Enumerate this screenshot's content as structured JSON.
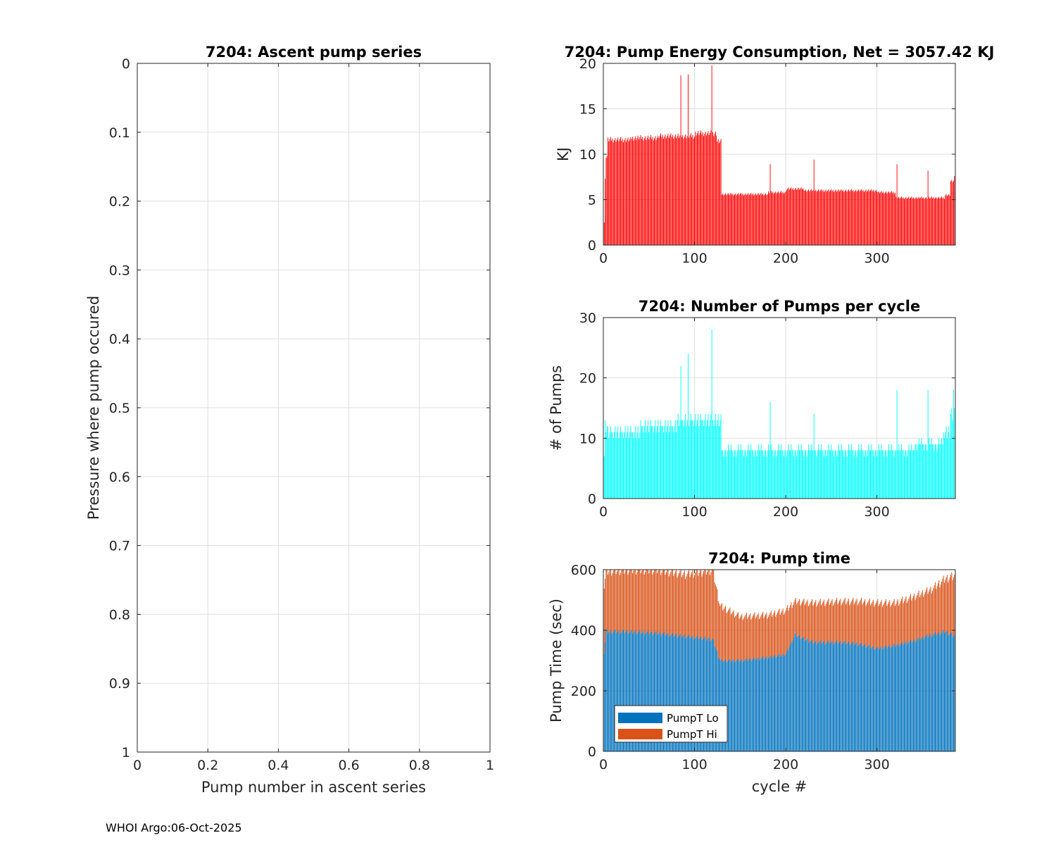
{
  "footer": "WHOI Argo:06-Oct-2025",
  "chart_data": [
    {
      "id": "ascent",
      "type": "scatter",
      "title": "7204: Ascent pump series",
      "xlabel": "Pump number in ascent series",
      "ylabel": "Pressure where pump occured",
      "xlim": [
        0,
        1
      ],
      "ylim": [
        0,
        1
      ],
      "y_reversed": true,
      "xticks": [
        "0",
        "0.2",
        "0.4",
        "0.6",
        "0.8",
        "1"
      ],
      "yticks": [
        "0",
        "0.1",
        "0.2",
        "0.3",
        "0.4",
        "0.5",
        "0.6",
        "0.7",
        "0.8",
        "0.9",
        "1"
      ],
      "grid": true,
      "points": []
    },
    {
      "id": "energy",
      "type": "bar",
      "title": "7204: Pump Energy Consumption,  Net = 3057.42 KJ",
      "xlabel": "",
      "ylabel": "KJ",
      "xlim": [
        0,
        386
      ],
      "ylim": [
        0,
        20
      ],
      "xticks": [
        "0",
        "100",
        "200",
        "300"
      ],
      "yticks": [
        "0",
        "5",
        "10",
        "15",
        "20"
      ],
      "grid": true,
      "color": "#ff0000",
      "segments": [
        {
          "x0": 1,
          "x1": 1,
          "v": 2.5
        },
        {
          "x0": 2,
          "x1": 2,
          "v": 7.2
        },
        {
          "x0": 3,
          "x1": 4,
          "v": 9.8
        },
        {
          "x0": 5,
          "x1": 30,
          "v": 11.6
        },
        {
          "x0": 31,
          "x1": 60,
          "v": 11.8
        },
        {
          "x0": 61,
          "x1": 100,
          "v": 12.0
        },
        {
          "x0": 101,
          "x1": 124,
          "v": 12.3
        },
        {
          "x0": 125,
          "x1": 129,
          "v": 11.4
        },
        {
          "x0": 130,
          "x1": 180,
          "v": 5.6
        },
        {
          "x0": 181,
          "x1": 200,
          "v": 5.8
        },
        {
          "x0": 201,
          "x1": 220,
          "v": 6.2
        },
        {
          "x0": 221,
          "x1": 300,
          "v": 6.0
        },
        {
          "x0": 301,
          "x1": 320,
          "v": 5.8
        },
        {
          "x0": 321,
          "x1": 374,
          "v": 5.2
        },
        {
          "x0": 375,
          "x1": 380,
          "v": 5.5
        },
        {
          "x0": 381,
          "x1": 384,
          "v": 7.0
        },
        {
          "x0": 385,
          "x1": 386,
          "v": 7.8
        }
      ],
      "spikes": [
        {
          "x": 85,
          "v": 18.7
        },
        {
          "x": 93,
          "v": 18.8
        },
        {
          "x": 119,
          "v": 19.8
        },
        {
          "x": 183,
          "v": 8.9
        },
        {
          "x": 231,
          "v": 9.4
        },
        {
          "x": 322,
          "v": 8.9
        },
        {
          "x": 356,
          "v": 8.2
        }
      ]
    },
    {
      "id": "pumps",
      "type": "bar",
      "title": "7204: Number of Pumps per cycle",
      "xlabel": "",
      "ylabel": "# of Pumps",
      "xlim": [
        0,
        386
      ],
      "ylim": [
        0,
        30
      ],
      "xticks": [
        "0",
        "100",
        "200",
        "300"
      ],
      "yticks": [
        "0",
        "10",
        "20",
        "30"
      ],
      "grid": true,
      "color": "#00ffff",
      "segments": [
        {
          "x0": 1,
          "x1": 1,
          "v": 7
        },
        {
          "x0": 2,
          "x1": 4,
          "v": 12
        },
        {
          "x0": 5,
          "x1": 40,
          "v": 11
        },
        {
          "x0": 41,
          "x1": 80,
          "v": 12
        },
        {
          "x0": 81,
          "x1": 129,
          "v": 13
        },
        {
          "x0": 130,
          "x1": 180,
          "v": 8
        },
        {
          "x0": 181,
          "x1": 260,
          "v": 8
        },
        {
          "x0": 261,
          "x1": 340,
          "v": 8
        },
        {
          "x0": 341,
          "x1": 372,
          "v": 9
        },
        {
          "x0": 373,
          "x1": 380,
          "v": 11
        },
        {
          "x0": 381,
          "x1": 383,
          "v": 14
        },
        {
          "x0": 384,
          "x1": 386,
          "v": 17
        }
      ],
      "spikes": [
        {
          "x": 85,
          "v": 22
        },
        {
          "x": 93,
          "v": 24
        },
        {
          "x": 119,
          "v": 28
        },
        {
          "x": 183,
          "v": 16
        },
        {
          "x": 231,
          "v": 14
        },
        {
          "x": 322,
          "v": 18
        },
        {
          "x": 356,
          "v": 18
        }
      ]
    },
    {
      "id": "pumptime",
      "type": "stacked-bar",
      "title": "7204: Pump time",
      "xlabel": "cycle #",
      "ylabel": "Pump Time (sec)",
      "xlim": [
        0,
        386
      ],
      "ylim": [
        0,
        600
      ],
      "xticks": [
        "0",
        "100",
        "200",
        "300"
      ],
      "yticks": [
        "0",
        "200",
        "400",
        "600"
      ],
      "grid": true,
      "legend_position": "bottom-left",
      "series": [
        {
          "name": "PumpT Lo",
          "color": "#0072bd",
          "points": [
            [
              0,
              290
            ],
            [
              3,
              395
            ],
            [
              30,
              395
            ],
            [
              60,
              390
            ],
            [
              90,
              380
            ],
            [
              120,
              370
            ],
            [
              128,
              300
            ],
            [
              150,
              300
            ],
            [
              180,
              310
            ],
            [
              200,
              320
            ],
            [
              210,
              385
            ],
            [
              230,
              360
            ],
            [
              260,
              360
            ],
            [
              280,
              355
            ],
            [
              300,
              340
            ],
            [
              320,
              350
            ],
            [
              340,
              365
            ],
            [
              360,
              385
            ],
            [
              375,
              395
            ],
            [
              386,
              380
            ]
          ]
        },
        {
          "name": "PumpT Hi",
          "color": "#d95319",
          "points": [
            [
              0,
              230
            ],
            [
              3,
              200
            ],
            [
              30,
              205
            ],
            [
              60,
              210
            ],
            [
              90,
              205
            ],
            [
              120,
              230
            ],
            [
              128,
              180
            ],
            [
              150,
              145
            ],
            [
              180,
              140
            ],
            [
              200,
              145
            ],
            [
              210,
              110
            ],
            [
              230,
              130
            ],
            [
              260,
              135
            ],
            [
              280,
              140
            ],
            [
              300,
              150
            ],
            [
              320,
              140
            ],
            [
              340,
              145
            ],
            [
              360,
              150
            ],
            [
              375,
              175
            ],
            [
              386,
              200
            ]
          ]
        }
      ]
    }
  ]
}
